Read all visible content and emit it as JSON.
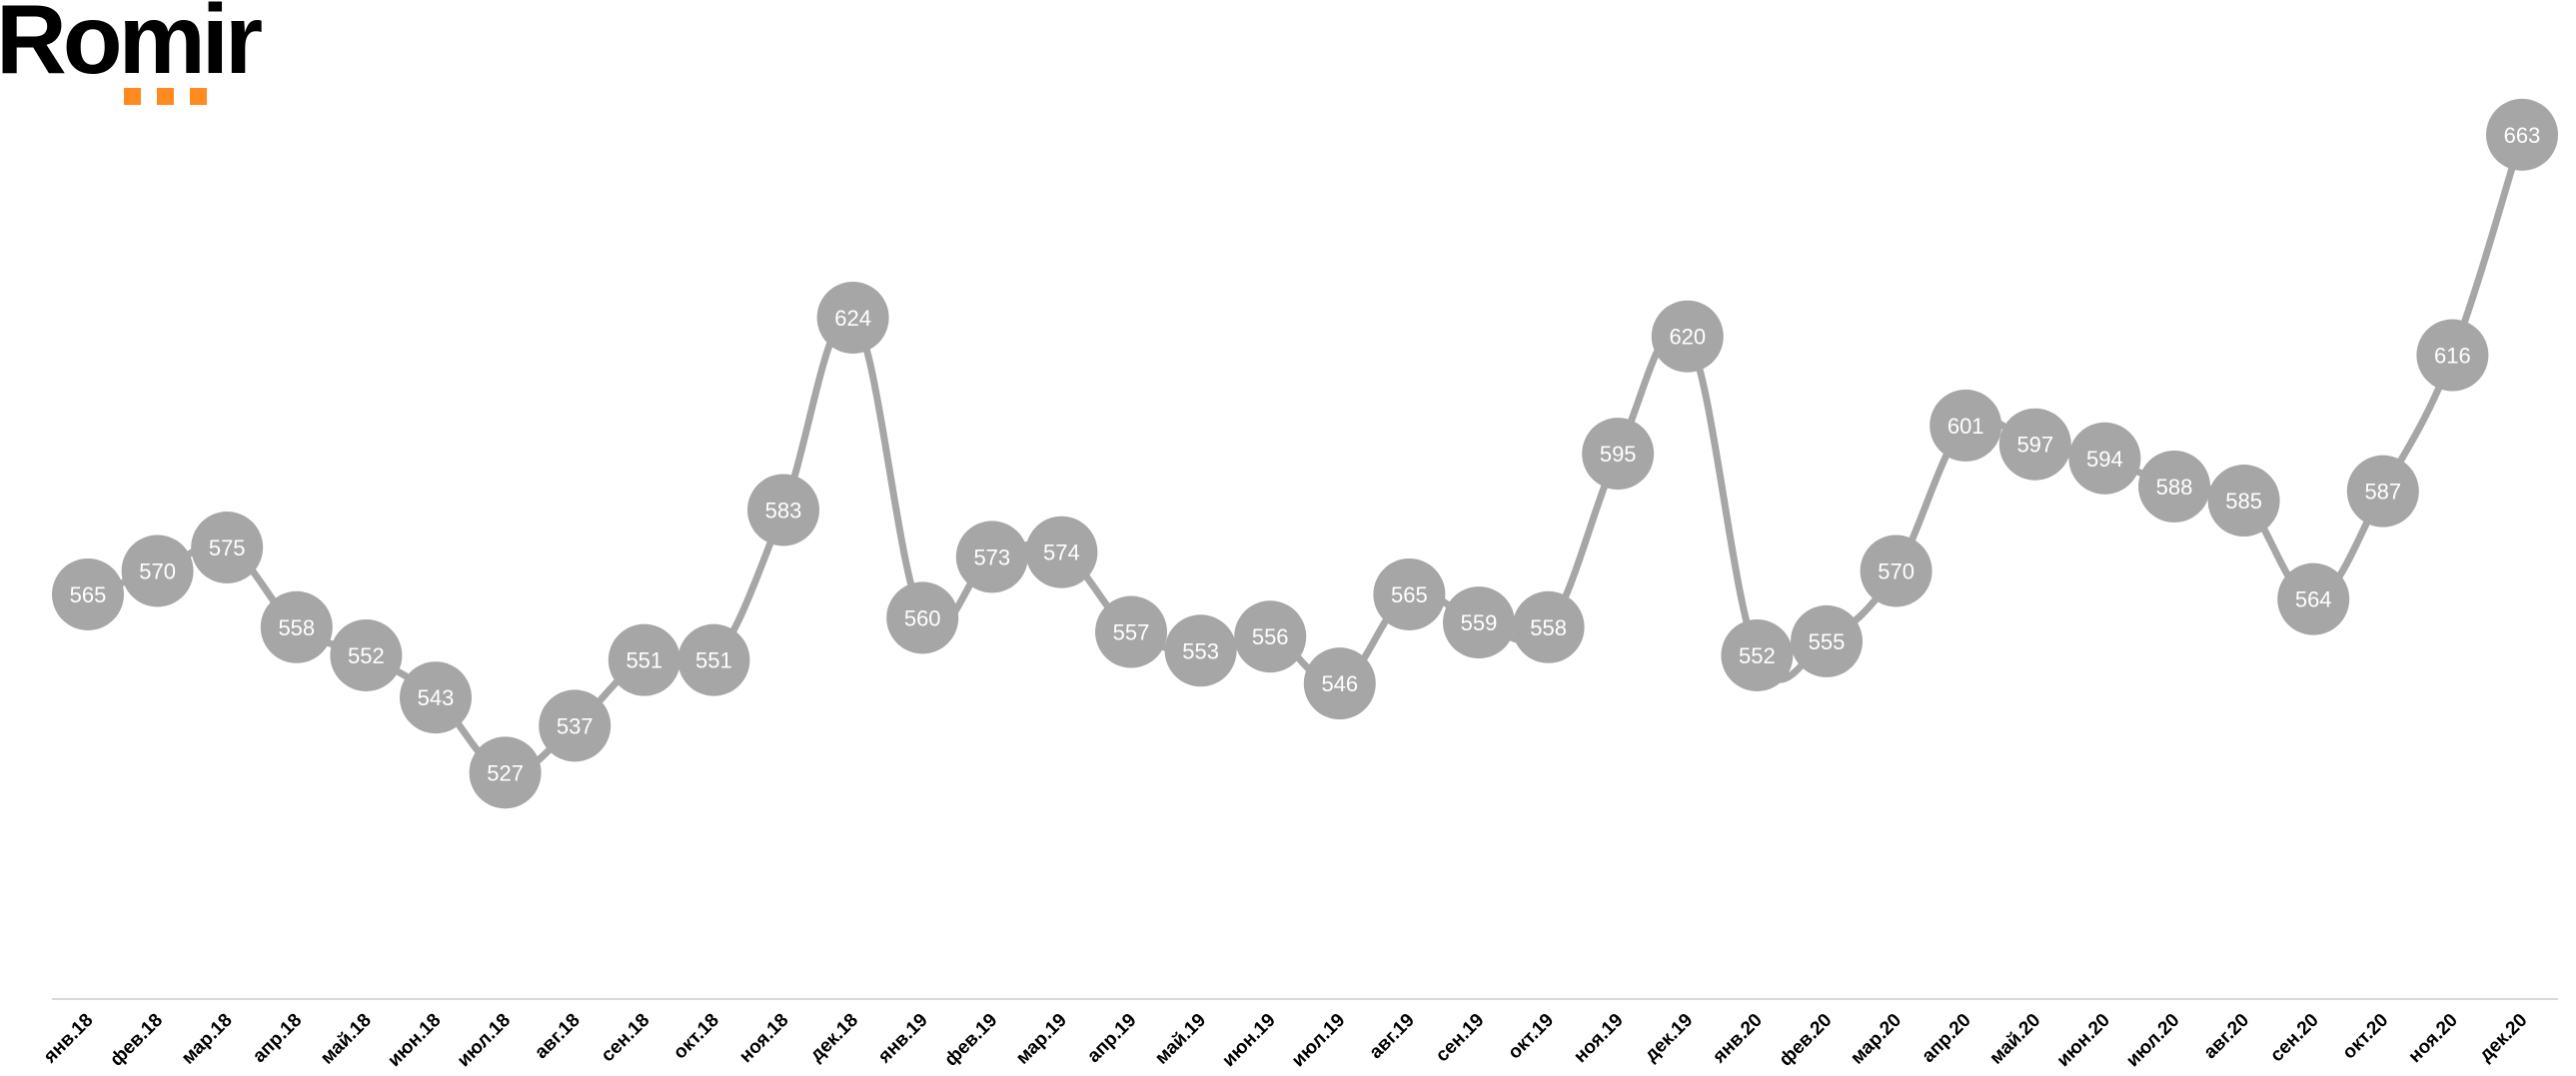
{
  "logo": {
    "text": "Romir",
    "accent_color": "#ff8a1f"
  },
  "chart_data": {
    "type": "line",
    "title": "",
    "xlabel": "",
    "ylabel": "",
    "grid": false,
    "legend": "none",
    "line_color": "#a6a6a6",
    "marker_color": "#a6a6a6",
    "label_color": "#ffffff",
    "ylim": [
      480,
      670
    ],
    "categories": [
      "янв.18",
      "фев.18",
      "мар.18",
      "апр.18",
      "май.18",
      "июн.18",
      "июл.18",
      "авг.18",
      "сен.18",
      "окт.18",
      "ноя.18",
      "дек.18",
      "янв.19",
      "фев.19",
      "мар.19",
      "апр.19",
      "май.19",
      "июн.19",
      "июл.19",
      "авг.19",
      "сен.19",
      "окт.19",
      "ноя.19",
      "дек.19",
      "янв.20",
      "фев.20",
      "мар.20",
      "апр.20",
      "май.20",
      "июн.20",
      "июл.20",
      "авг.20",
      "сен.20",
      "окт.20",
      "ноя.20",
      "дек.20"
    ],
    "values": [
      565,
      570,
      575,
      558,
      552,
      543,
      527,
      537,
      551,
      551,
      583,
      624,
      560,
      573,
      574,
      557,
      553,
      556,
      546,
      565,
      559,
      558,
      595,
      620,
      552,
      555,
      570,
      601,
      597,
      594,
      588,
      585,
      564,
      587,
      616,
      663
    ]
  }
}
